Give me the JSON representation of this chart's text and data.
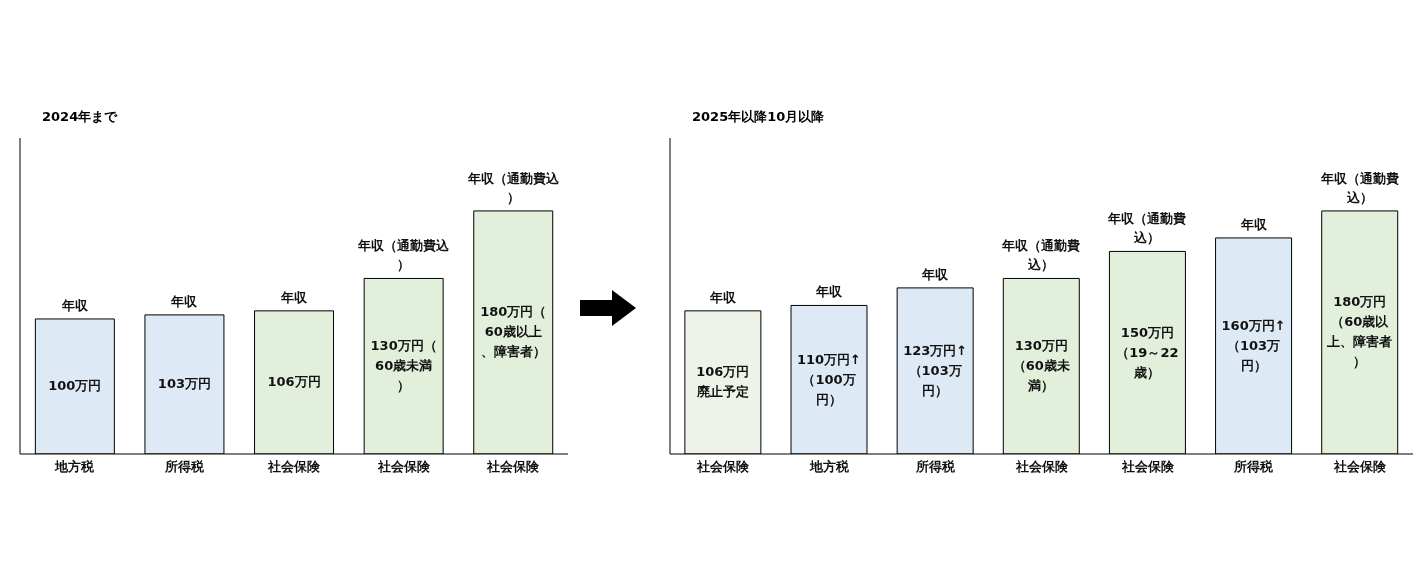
{
  "chart_data": [
    {
      "type": "bar",
      "title": "2024年まで",
      "categories": [
        "地方税",
        "所得税",
        "社会保険",
        "社会保険",
        "社会保険"
      ],
      "values": [
        100,
        103,
        106,
        130,
        180
      ],
      "colors": [
        "#dde9f5",
        "#dde9f5",
        "#e2efda",
        "#e2efda",
        "#e2efda"
      ],
      "value_labels": [
        "100万円",
        "103万円",
        "106万円",
        "130万円（60歳未満）",
        "180万円（60歳以上、障害者）"
      ],
      "annotations": [
        "年収",
        "年収",
        "年収",
        "年収（通勤費込）",
        "年収（通勤費込）"
      ]
    },
    {
      "type": "bar",
      "title": "2025年以降10月以降",
      "categories": [
        "社会保険",
        "地方税",
        "所得税",
        "社会保険",
        "社会保険",
        "所得税",
        "社会保険"
      ],
      "values": [
        106,
        110,
        123,
        130,
        150,
        160,
        180
      ],
      "colors": [
        "#eef3ea",
        "#dde9f5",
        "#dde9f5",
        "#e2efda",
        "#e2efda",
        "#dde9f5",
        "#e2efda"
      ],
      "value_labels": [
        "106万円廃止予定",
        "110万円↑（100万円）",
        "123万円↑（103万円）",
        "130万円（60歳未満）",
        "150万円（19～22歳）",
        "160万円↑（103万円）",
        "180万円（60歳以上、障害者）"
      ],
      "annotations": [
        "年収",
        "年収",
        "年収",
        "年収（通勤費込）",
        "年収（通勤費込）",
        "年収",
        "年収（通勤費込）"
      ]
    }
  ]
}
